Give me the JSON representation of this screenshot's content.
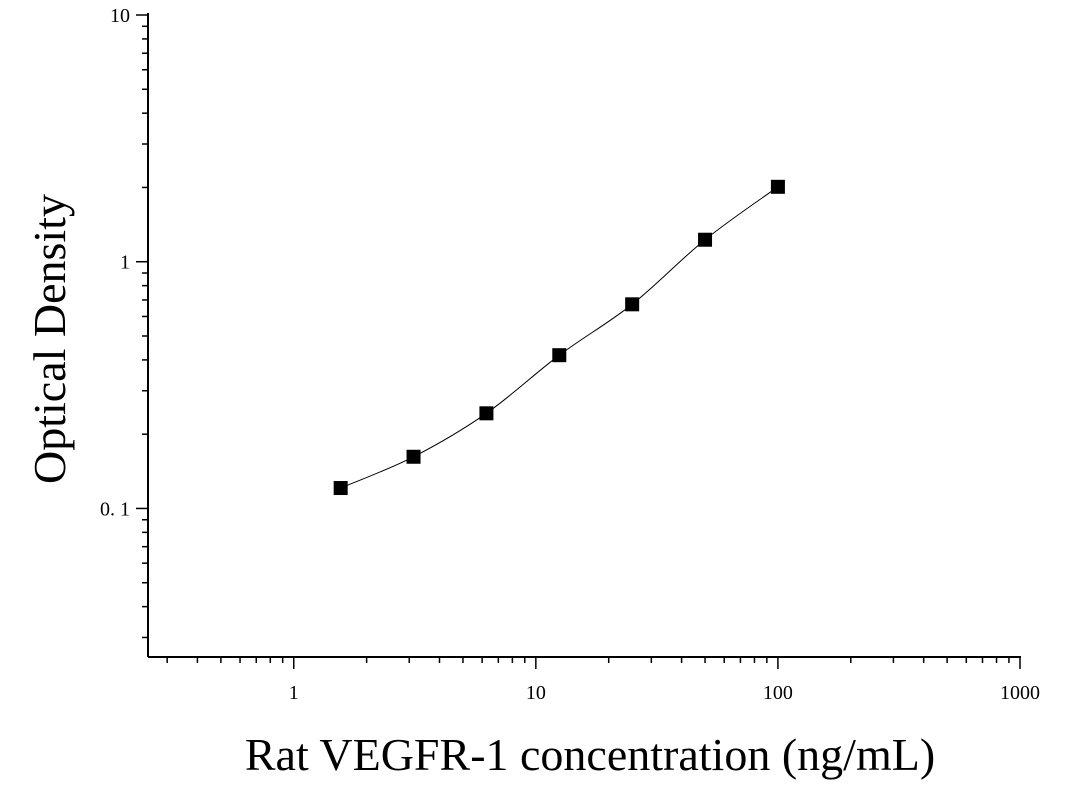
{
  "chart_data": {
    "type": "scatter",
    "xlabel": "Rat VEGFR-1 concentration (ng/mL)",
    "ylabel": "Optical Density",
    "x_scale": "log",
    "y_scale": "log",
    "xlim": [
      0.25,
      1000
    ],
    "ylim": [
      0.025,
      10
    ],
    "x_ticks": [
      1,
      10,
      100,
      1000
    ],
    "x_tick_labels": [
      "1",
      "10",
      "100",
      "1000"
    ],
    "y_ticks": [
      0.1,
      1,
      10
    ],
    "y_tick_labels": [
      "0. 1",
      "1",
      "10"
    ],
    "grid": false,
    "series": [
      {
        "marker": "square",
        "color": "#000000",
        "x": [
          1.5625,
          3.125,
          6.25,
          12.5,
          25,
          50,
          100
        ],
        "y": [
          0.121,
          0.162,
          0.243,
          0.418,
          0.672,
          1.228,
          2.012
        ]
      }
    ],
    "fit_curve": true
  }
}
